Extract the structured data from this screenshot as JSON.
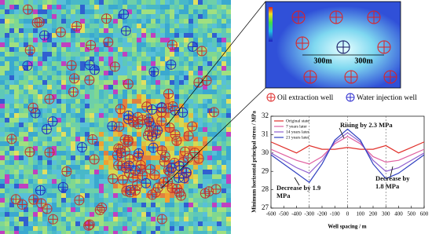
{
  "well_legend": [
    "Oil extraction well",
    "Water injection well"
  ],
  "inset": {
    "spacing_labels": [
      "300m",
      "300m"
    ]
  },
  "chart_data": {
    "type": "line",
    "y_label": "Minimum horizontal principal stress / MPa",
    "x_label": "Well spacing / m",
    "x": [
      -600,
      -500,
      -400,
      -300,
      -200,
      -100,
      0,
      100,
      200,
      300,
      400,
      500,
      600
    ],
    "series": [
      {
        "name": "Original state",
        "color": "#e0302a",
        "values": [
          30.6,
          30.3,
          30.0,
          30.4,
          30.2,
          30.2,
          30.3,
          30.2,
          30.2,
          30.4,
          30.0,
          30.3,
          30.6
        ]
      },
      {
        "name": "7 years later",
        "color": "#e060a0",
        "values": [
          30.2,
          29.9,
          29.6,
          29.4,
          29.8,
          30.5,
          30.9,
          30.5,
          29.8,
          29.5,
          29.6,
          29.9,
          30.2
        ]
      },
      {
        "name": "14 years later",
        "color": "#9060d0",
        "values": [
          30.0,
          29.6,
          29.2,
          28.9,
          29.6,
          30.6,
          31.1,
          30.6,
          29.6,
          29.0,
          29.2,
          29.6,
          30.0
        ]
      },
      {
        "name": "21 years later",
        "color": "#3040c0",
        "values": [
          29.9,
          29.4,
          28.9,
          28.4,
          29.4,
          30.7,
          31.3,
          30.7,
          29.4,
          28.6,
          28.9,
          29.4,
          29.9
        ]
      }
    ],
    "xlim": [
      -600,
      600
    ],
    "xticks": [
      -600,
      -500,
      -400,
      -300,
      -200,
      -100,
      0,
      100,
      200,
      300,
      400,
      500,
      600
    ],
    "ylim": [
      27,
      32
    ],
    "yticks": [
      27,
      28,
      29,
      30,
      31,
      32
    ],
    "annotations": [
      "Rising by 2.3 MPa",
      "Decrease by 1.9 MPa",
      "Decrease by 1.8 MPa"
    ]
  }
}
